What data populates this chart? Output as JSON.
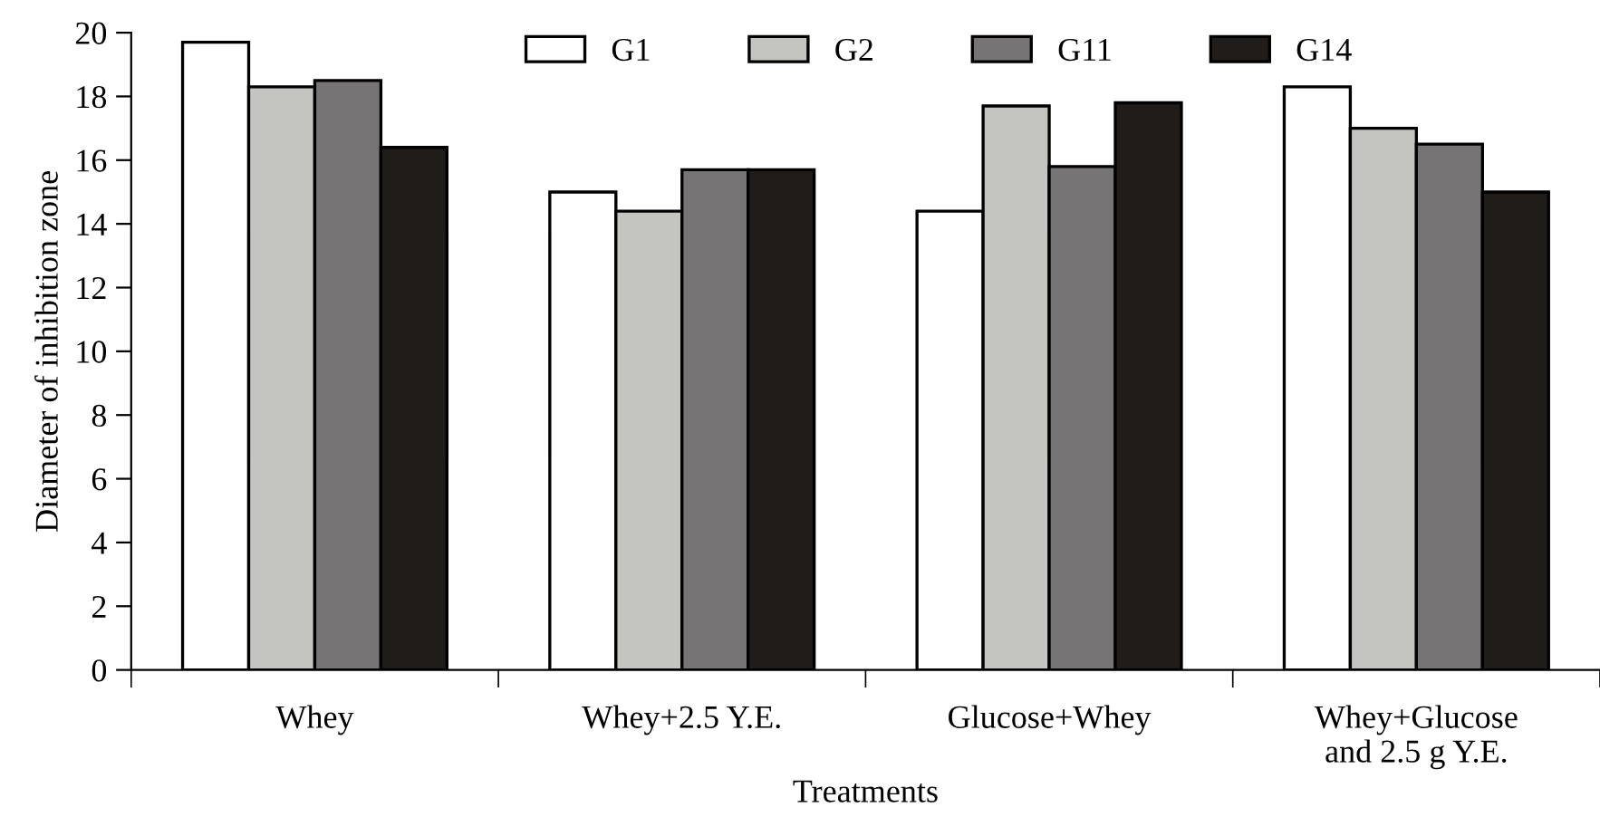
{
  "chart_data": {
    "type": "bar",
    "xlabel": "Treatments",
    "ylabel": "Diameter of inhibition zone",
    "categories": [
      "Whey",
      "Whey+2.5 Y.E.",
      "Glucose+Whey",
      "Whey+Glucose\nand 2.5 g Y.E."
    ],
    "series": [
      {
        "name": "G1",
        "color": "#ffffff",
        "values": [
          19.7,
          15.0,
          14.4,
          18.3
        ]
      },
      {
        "name": "G2",
        "color": "#c4c4c0",
        "values": [
          18.3,
          14.4,
          17.7,
          17.0
        ]
      },
      {
        "name": "G11",
        "color": "#767474",
        "values": [
          18.5,
          15.7,
          15.8,
          16.5
        ]
      },
      {
        "name": "G14",
        "color": "#201c1a",
        "values": [
          16.4,
          15.7,
          17.8,
          15.0
        ]
      }
    ],
    "ylim": [
      0,
      20
    ],
    "yticks": [
      0,
      2,
      4,
      6,
      8,
      10,
      12,
      14,
      16,
      18,
      20
    ],
    "grid": false,
    "legend": "top"
  }
}
